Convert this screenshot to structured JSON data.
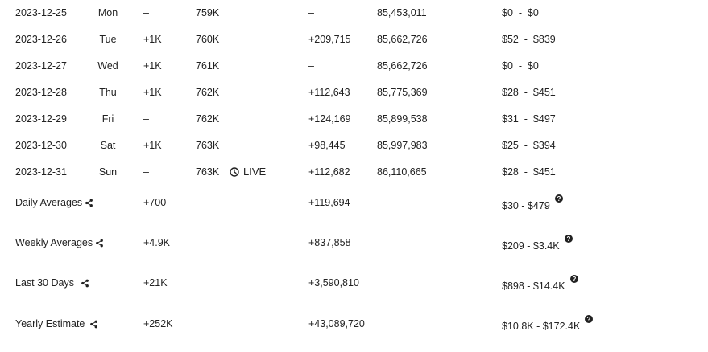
{
  "daily_rows": [
    {
      "date": "2023-12-25",
      "day": "Mon",
      "subs_change": "–",
      "subs_total": "759K",
      "live": "",
      "views_change": "–",
      "views_total": "85,453,011",
      "earnings": "$0  -  $0"
    },
    {
      "date": "2023-12-26",
      "day": "Tue",
      "subs_change": "+1K",
      "subs_total": "760K",
      "live": "",
      "views_change": "+209,715",
      "views_total": "85,662,726",
      "earnings": "$52  -  $839"
    },
    {
      "date": "2023-12-27",
      "day": "Wed",
      "subs_change": "+1K",
      "subs_total": "761K",
      "live": "",
      "views_change": "–",
      "views_total": "85,662,726",
      "earnings": "$0  -  $0"
    },
    {
      "date": "2023-12-28",
      "day": "Thu",
      "subs_change": "+1K",
      "subs_total": "762K",
      "live": "",
      "views_change": "+112,643",
      "views_total": "85,775,369",
      "earnings": "$28  -  $451"
    },
    {
      "date": "2023-12-29",
      "day": "Fri",
      "subs_change": "–",
      "subs_total": "762K",
      "live": "",
      "views_change": "+124,169",
      "views_total": "85,899,538",
      "earnings": "$31  -  $497"
    },
    {
      "date": "2023-12-30",
      "day": "Sat",
      "subs_change": "+1K",
      "subs_total": "763K",
      "live": "",
      "views_change": "+98,445",
      "views_total": "85,997,983",
      "earnings": "$25  -  $394"
    },
    {
      "date": "2023-12-31",
      "day": "Sun",
      "subs_change": "–",
      "subs_total": "763K",
      "live": "LIVE",
      "views_change": "+112,682",
      "views_total": "86,110,665",
      "earnings": "$28  -  $451"
    }
  ],
  "averages": [
    {
      "label": "Daily Averages",
      "subs": "+700",
      "views": "+119,694",
      "earnings": "$30 - $479"
    },
    {
      "label": "Weekly Averages",
      "subs": "+4.9K",
      "views": "+837,858",
      "earnings": "$209 - $3.4K"
    },
    {
      "label": "Last 30 Days",
      "subs": "+21K",
      "views": "+3,590,810",
      "earnings": "$898 - $14.4K"
    },
    {
      "label": "Yearly Estimate",
      "subs": "+252K",
      "views": "+43,089,720",
      "earnings": "$10.8K - $172.4K"
    }
  ],
  "icons": {
    "share": "share-icon",
    "help": "help-circle-icon",
    "clock": "clock-icon"
  },
  "colors": {
    "text": "#222222",
    "background": "#ffffff"
  }
}
